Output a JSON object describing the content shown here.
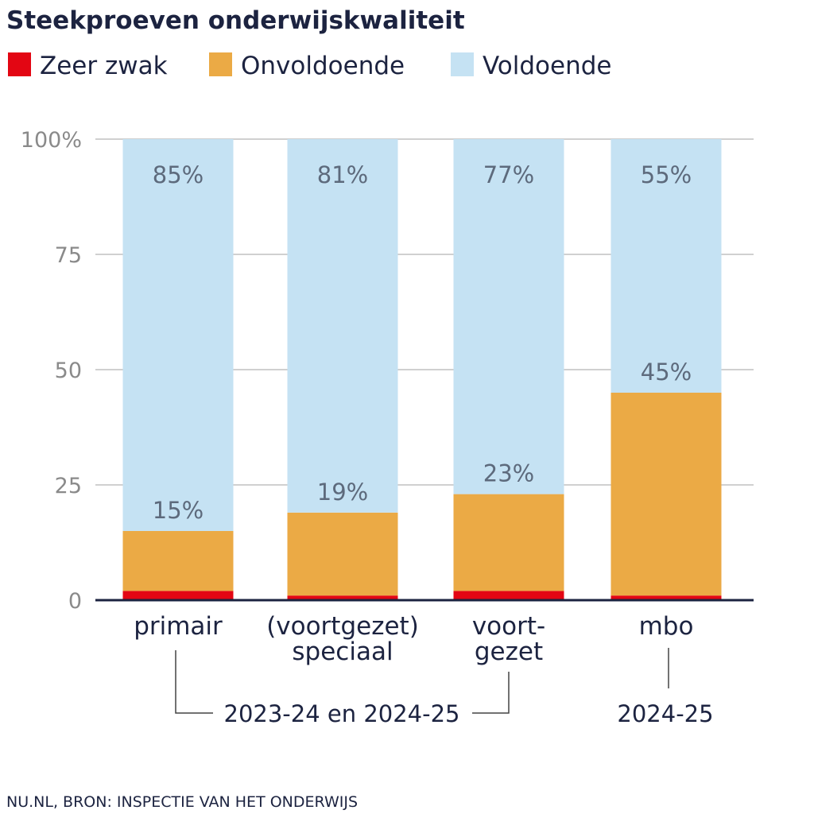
{
  "title": "Steekproeven onderwijskwaliteit",
  "source": "NU.NL, BRON: INSPECTIE VAN HET ONDERWIJS",
  "colors": {
    "zeer_zwak": "#e30613",
    "onvoldoende": "#ebaa45",
    "voldoende": "#c5e2f3",
    "axis": "#1c2340",
    "grid": "#d0d0d0"
  },
  "chart_data": {
    "type": "bar",
    "stacked": true,
    "title": "Steekproeven onderwijskwaliteit",
    "categories": [
      [
        "primair"
      ],
      [
        "(voortgezet)",
        "speciaal"
      ],
      [
        "voort-",
        "gezet"
      ],
      [
        "mbo"
      ]
    ],
    "series": [
      {
        "name": "Zeer zwak",
        "color": "#e30613",
        "values": [
          2,
          1,
          2,
          1
        ]
      },
      {
        "name": "Onvoldoende",
        "color": "#ebaa45",
        "values": [
          13,
          18,
          21,
          44
        ]
      },
      {
        "name": "Voldoende",
        "color": "#c5e2f3",
        "values": [
          85,
          81,
          77,
          55
        ]
      }
    ],
    "bar_labels": {
      "onvoldoende_total": [
        "15%",
        "19%",
        "23%",
        "45%"
      ],
      "voldoende": [
        "85%",
        "81%",
        "77%",
        "55%"
      ]
    },
    "yticks": [
      "0",
      "25",
      "50",
      "75",
      "100%"
    ],
    "ytick_values": [
      0,
      25,
      50,
      75,
      100
    ],
    "ylim": [
      0,
      100
    ],
    "grid": true,
    "legend_position": "top-left",
    "groups": [
      {
        "label": "2023-24 en 2024-25",
        "categories": [
          0,
          2
        ]
      },
      {
        "label": "2024-25",
        "categories": [
          3
        ]
      }
    ]
  }
}
